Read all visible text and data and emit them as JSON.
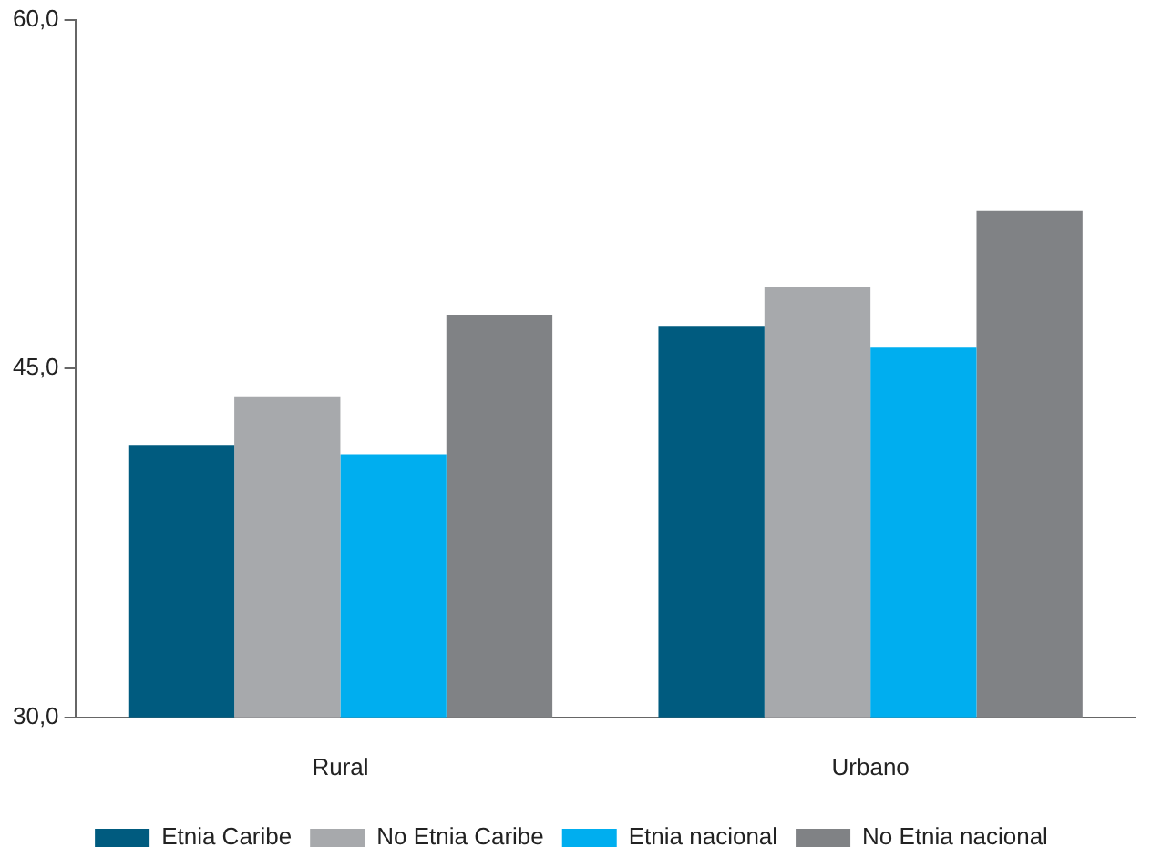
{
  "chart_data": {
    "type": "bar",
    "categories": [
      "Rural",
      "Urbano"
    ],
    "series": [
      {
        "name": "Etnia Caribe",
        "color": "#005b7f",
        "values": [
          41.7,
          46.8
        ]
      },
      {
        "name": "No Etnia Caribe",
        "color": "#a7a9ac",
        "values": [
          43.8,
          48.5
        ]
      },
      {
        "name": "Etnia nacional",
        "color": "#00aeef",
        "values": [
          41.3,
          45.9
        ]
      },
      {
        "name": "No Etnia nacional",
        "color": "#808285",
        "values": [
          47.3,
          51.8
        ]
      }
    ],
    "ylim": [
      30,
      60
    ],
    "yticks": [
      {
        "value": 30,
        "label": "30,0"
      },
      {
        "value": 45,
        "label": "45,0"
      },
      {
        "value": 60,
        "label": "60,0"
      }
    ],
    "grid": false,
    "legend": "bottom"
  }
}
